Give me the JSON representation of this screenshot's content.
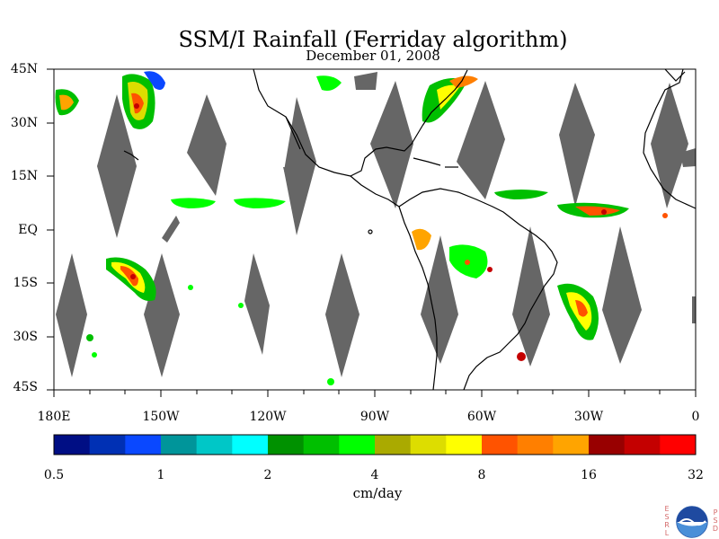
{
  "title": "SSM/I Rainfall (Ferriday algorithm)",
  "date": "December 01, 2008",
  "lat_labels": [
    "45N",
    "30N",
    "15N",
    "EQ",
    "15S",
    "30S",
    "45S"
  ],
  "lon_labels": [
    "180E",
    "150W",
    "120W",
    "90W",
    "60W",
    "30W",
    "0"
  ],
  "colorbar": {
    "colors": [
      "#000e84",
      "#0030b4",
      "#0a48ff",
      "#00959a",
      "#00c7c7",
      "#00ffff",
      "#009100",
      "#00bf00",
      "#00ff00",
      "#aaaa00",
      "#dddd00",
      "#ffff00",
      "#ff5300",
      "#ff7f00",
      "#ffa400",
      "#980000",
      "#c40000",
      "#ff0000"
    ],
    "tick_labels": [
      "0.5",
      "1",
      "2",
      "4",
      "8",
      "16",
      "32"
    ],
    "units": "cm/day"
  },
  "logo": {
    "left_text": [
      "E",
      "S",
      "R",
      "L"
    ],
    "right_text": [
      "P",
      "S",
      "D"
    ],
    "center_text": "NOAA"
  },
  "colors": {
    "gap_fill": "#666666",
    "coastline": "#000000",
    "land": "#ffffff"
  }
}
